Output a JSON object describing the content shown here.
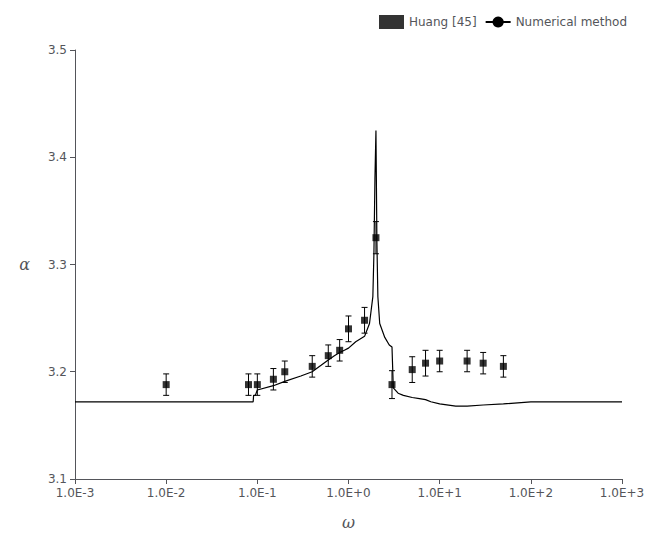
{
  "chart_data": {
    "type": "line",
    "xlabel": "ω",
    "ylabel": "α",
    "log": "x",
    "grid": false,
    "legend": "upper right",
    "background_color": "#ffffff",
    "xlim": [
      0.001,
      1000
    ],
    "xticks": [
      {
        "value": 0.001,
        "label": "1.0E-3"
      },
      {
        "value": 0.01,
        "label": "1.0E-2"
      },
      {
        "value": 0.1,
        "label": "1.0E-1"
      },
      {
        "value": 1,
        "label": "1.0E+0"
      },
      {
        "value": 10,
        "label": "1.0E+1"
      },
      {
        "value": 100,
        "label": "1.0E+2"
      },
      {
        "value": 1000,
        "label": "1.0E+3"
      }
    ],
    "ylim": [
      3.1,
      3.5
    ],
    "yticks": [
      3.1,
      3.2,
      3.3,
      3.4,
      3.5
    ],
    "series": [
      {
        "name": "Huang [45]",
        "type": "scatter",
        "color": "#000000",
        "marker": "square",
        "x": [
          0.01,
          0.08,
          0.1,
          0.15,
          0.2,
          0.4,
          0.6,
          0.8,
          1.0,
          1.5,
          2.0,
          3.0,
          5.0,
          7.0,
          10.0,
          20.0,
          30.0,
          50.0
        ],
        "values": [
          3.188,
          3.188,
          3.188,
          3.193,
          3.2,
          3.205,
          3.215,
          3.22,
          3.24,
          3.248,
          3.325,
          3.188,
          3.202,
          3.208,
          3.21,
          3.21,
          3.208,
          3.205
        ],
        "error": [
          0.01,
          0.01,
          0.01,
          0.01,
          0.01,
          0.01,
          0.01,
          0.01,
          0.012,
          0.012,
          0.015,
          0.013,
          0.012,
          0.012,
          0.01,
          0.01,
          0.01,
          0.01
        ]
      },
      {
        "name": "Numerical method",
        "type": "line",
        "color": "#000000",
        "line_style": "solid",
        "x": [
          0.001,
          0.005,
          0.008,
          0.09,
          0.091,
          0.095,
          0.1,
          0.15,
          0.2,
          0.3,
          0.4,
          0.5,
          0.6,
          0.7,
          0.8,
          0.9,
          1.0,
          1.2,
          1.5,
          1.7,
          1.85,
          1.9,
          1.95,
          2.0,
          2.05,
          2.1,
          2.2,
          2.5,
          2.8,
          3.0,
          3.1,
          3.5,
          4.0,
          5.0,
          6.0,
          7.0,
          8.0,
          10.0,
          15.0,
          20.0,
          30.0,
          50.0,
          100.0,
          1000.0
        ],
        "values": [
          3.172,
          3.172,
          3.172,
          3.172,
          3.178,
          3.178,
          3.183,
          3.187,
          3.191,
          3.196,
          3.2,
          3.206,
          3.211,
          3.215,
          3.218,
          3.22,
          3.222,
          3.228,
          3.233,
          3.245,
          3.27,
          3.31,
          3.38,
          3.425,
          3.32,
          3.27,
          3.245,
          3.232,
          3.225,
          3.223,
          3.185,
          3.18,
          3.178,
          3.176,
          3.175,
          3.174,
          3.172,
          3.17,
          3.168,
          3.168,
          3.169,
          3.17,
          3.172,
          3.172
        ]
      }
    ]
  }
}
